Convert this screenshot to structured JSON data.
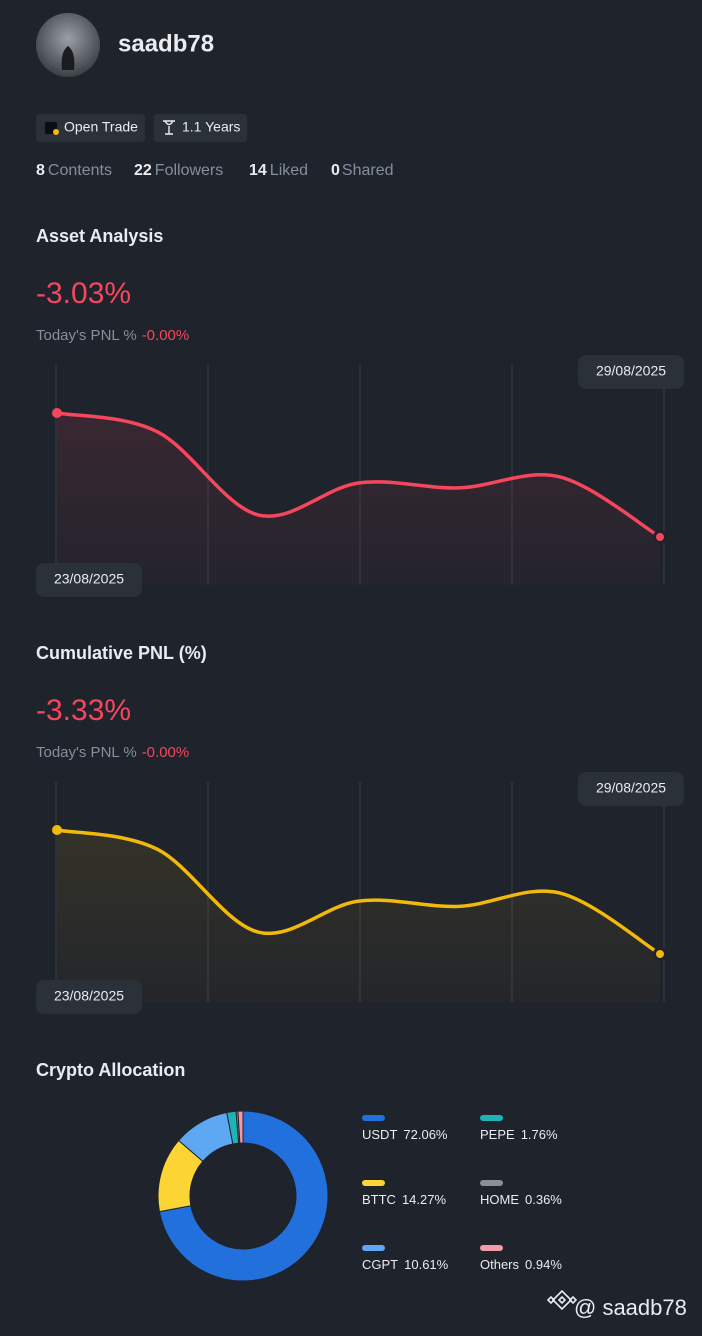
{
  "profile": {
    "username": "saadb78",
    "badges": [
      "Open Trade",
      "1.1 Years"
    ],
    "stats": [
      {
        "value": 8,
        "label": "Contents"
      },
      {
        "value": 22,
        "label": "Followers"
      },
      {
        "value": 14,
        "label": "Liked"
      },
      {
        "value": 0,
        "label": "Shared"
      }
    ]
  },
  "chart_data": [
    {
      "type": "line",
      "title": "Asset Analysis",
      "headline": "-3.03%",
      "today_label": "Today's PNL %",
      "today_value": "-0.00%",
      "categories": [
        "23/08/2025",
        null,
        null,
        null,
        null,
        null,
        "29/08/2025"
      ],
      "values": [
        0,
        -0.46,
        -2.49,
        -1.71,
        -1.83,
        -1.56,
        -3.03
      ],
      "color": "#f6465d"
    },
    {
      "type": "line",
      "title": "Cumulative PNL (%)",
      "headline": "-3.33%",
      "today_label": "Today's PNL %",
      "today_value": "-0.00%",
      "categories": [
        "23/08/2025",
        null,
        null,
        null,
        null,
        null,
        "29/08/2025"
      ],
      "values": [
        0,
        -0.52,
        -2.74,
        -1.91,
        -2.05,
        -1.69,
        -3.33
      ],
      "color": "#f0b90b"
    },
    {
      "type": "pie",
      "title": "Crypto Allocation",
      "categories": [
        "USDT",
        "BTTC",
        "CGPT",
        "PEPE",
        "HOME",
        "Others"
      ],
      "values": [
        72.06,
        14.27,
        10.61,
        1.76,
        0.36,
        0.94
      ],
      "value_labels": [
        "72.06%",
        "14.27%",
        "10.61%",
        "1.76%",
        "0.36%",
        "0.94%"
      ],
      "colors": [
        "#2270dc",
        "#fcd535",
        "#5ea7f2",
        "#1fb3b8",
        "#8b8e94",
        "#f39aa9"
      ]
    }
  ],
  "watermark": "@ saadb78"
}
